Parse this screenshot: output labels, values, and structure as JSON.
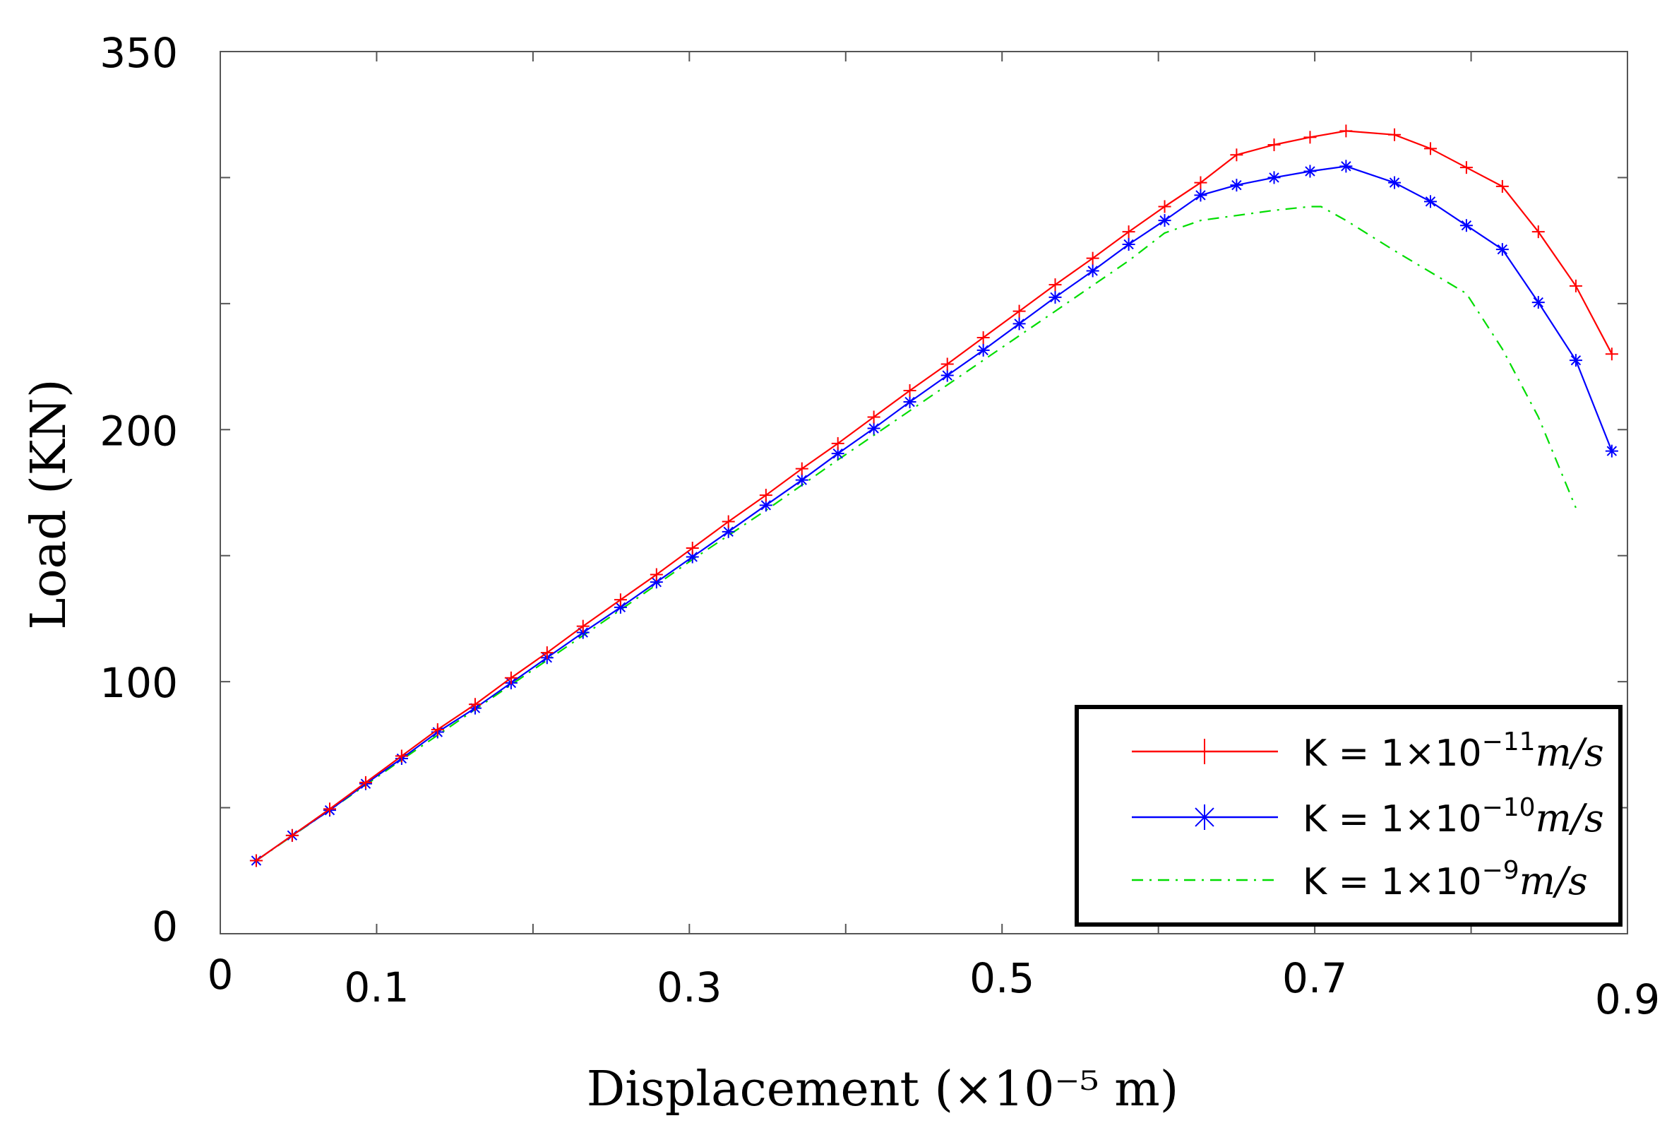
{
  "chart_data": {
    "type": "line",
    "title": "",
    "xlabel": "Displacement (×10⁻⁵ m)",
    "ylabel": "Load (KN)",
    "xlim": [
      0,
      0.9
    ],
    "ylim": [
      0,
      350
    ],
    "x_ticks": [
      0,
      0.1,
      0.3,
      0.5,
      0.7,
      0.9
    ],
    "x_tick_labels": [
      "0",
      "0.1",
      "0.3",
      "0.5",
      "0.7",
      "0.9"
    ],
    "x_minor_ticks": [
      0.2,
      0.4,
      0.6,
      0.8
    ],
    "y_ticks": [
      0,
      100,
      200,
      350
    ],
    "y_tick_labels": [
      "0",
      "100",
      "200",
      "350"
    ],
    "y_minor_ticks": [
      50,
      150,
      250,
      300
    ],
    "grid": false,
    "legend_position": "bottom-right",
    "series": [
      {
        "name": "K = 1×10⁻¹¹ m/s",
        "legend_prefix": "K = 1×10",
        "legend_exp": "−11",
        "legend_unit": "m/s",
        "color": "#ff0000",
        "marker": "plus",
        "line_style": "solid",
        "x": [
          0.023,
          0.046,
          0.07,
          0.093,
          0.116,
          0.139,
          0.163,
          0.186,
          0.209,
          0.232,
          0.256,
          0.279,
          0.302,
          0.325,
          0.349,
          0.372,
          0.395,
          0.418,
          0.441,
          0.465,
          0.488,
          0.511,
          0.534,
          0.558,
          0.581,
          0.604,
          0.627,
          0.65,
          0.674,
          0.697,
          0.72,
          0.751,
          0.774,
          0.797,
          0.82,
          0.843,
          0.867,
          0.89
        ],
        "y": [
          29,
          39,
          49.5,
          60,
          70.5,
          81,
          91,
          101.5,
          111.5,
          122,
          132.5,
          142.5,
          153,
          163.5,
          174,
          184.5,
          194.5,
          205,
          215.5,
          226,
          236.5,
          247,
          257.5,
          268,
          278.5,
          288.5,
          298,
          309,
          313,
          316,
          318.5,
          317,
          311.5,
          304,
          296.5,
          278.5,
          257,
          230
        ]
      },
      {
        "name": "K = 1×10⁻¹⁰ m/s",
        "legend_prefix": "K = 1×10",
        "legend_exp": "−10",
        "legend_unit": "m/s",
        "color": "#0000ff",
        "marker": "asterisk",
        "line_style": "solid",
        "x": [
          0.023,
          0.046,
          0.07,
          0.093,
          0.116,
          0.139,
          0.163,
          0.186,
          0.209,
          0.232,
          0.256,
          0.279,
          0.302,
          0.325,
          0.349,
          0.372,
          0.395,
          0.418,
          0.441,
          0.465,
          0.488,
          0.511,
          0.534,
          0.558,
          0.581,
          0.604,
          0.627,
          0.65,
          0.674,
          0.697,
          0.72,
          0.751,
          0.774,
          0.797,
          0.82,
          0.843,
          0.867,
          0.89
        ],
        "y": [
          29,
          39,
          49,
          59.5,
          69.5,
          80,
          89.5,
          99.5,
          109.5,
          119.5,
          129.5,
          139.5,
          149.5,
          159.5,
          170,
          180,
          190.5,
          200.5,
          211,
          221.5,
          231.5,
          242,
          252.5,
          263,
          273.5,
          283,
          293,
          297,
          300,
          302.5,
          304.5,
          298,
          290.5,
          281,
          271.5,
          250.5,
          227.5,
          191.5
        ]
      },
      {
        "name": "K = 1×10⁻⁹ m/s",
        "legend_prefix": "K = 1×10",
        "legend_exp": "−9",
        "legend_unit": "m/s",
        "color": "#00dd00",
        "marker": "none",
        "line_style": "dashdot",
        "x": [
          0.023,
          0.07,
          0.116,
          0.163,
          0.209,
          0.256,
          0.302,
          0.349,
          0.395,
          0.441,
          0.488,
          0.534,
          0.581,
          0.604,
          0.627,
          0.674,
          0.697,
          0.704,
          0.72,
          0.751,
          0.797,
          0.82,
          0.843,
          0.867
        ],
        "y": [
          29,
          49,
          69,
          89,
          108.5,
          128.5,
          148.5,
          168,
          188,
          207.5,
          227.5,
          247,
          267,
          278,
          283,
          287,
          288.5,
          288.5,
          283,
          271,
          254,
          232,
          205,
          169
        ]
      }
    ]
  }
}
